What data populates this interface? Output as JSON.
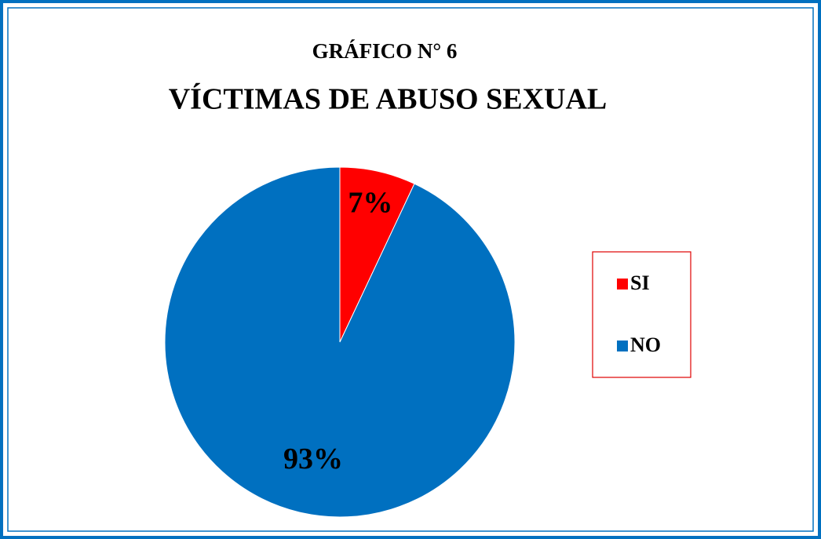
{
  "chart_data": {
    "type": "pie",
    "title": "GRÁFICO N°  6",
    "subtitle": "VÍCTIMAS DE ABUSO SEXUAL",
    "categories": [
      "SI",
      "NO"
    ],
    "values": [
      7,
      93
    ],
    "value_labels": [
      "7%",
      "93%"
    ],
    "colors": [
      "#ff0000",
      "#0070c0"
    ],
    "legend": "right"
  }
}
